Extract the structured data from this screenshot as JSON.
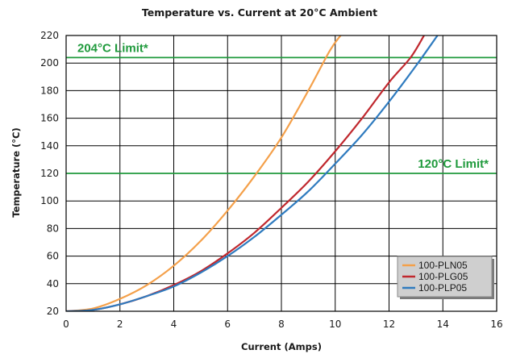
{
  "chart_data": {
    "type": "line",
    "title": "Temperature vs. Current at 20°C Ambient",
    "xlabel": "Current (Amps)",
    "ylabel": "Temperature (°C)",
    "xlim": [
      0,
      16
    ],
    "ylim": [
      20,
      220
    ],
    "xticks": [
      0,
      2,
      4,
      6,
      8,
      10,
      12,
      14,
      16
    ],
    "yticks": [
      20,
      40,
      60,
      80,
      100,
      120,
      140,
      160,
      180,
      200,
      220
    ],
    "grid": true,
    "legend_position": "bottom-right",
    "series": [
      {
        "name": "100-PLN05",
        "color": "#f4a04a",
        "x": [
          0,
          1,
          2,
          3,
          4,
          5,
          6,
          7,
          8,
          9,
          9.8,
          10.2
        ],
        "y": [
          20,
          22,
          29,
          39,
          53,
          71,
          93,
          118,
          146,
          180,
          209,
          220
        ]
      },
      {
        "name": "100-PLG05",
        "color": "#c0282e",
        "x": [
          0,
          1,
          2,
          3,
          4,
          5,
          6,
          7,
          8,
          9,
          10,
          11,
          12,
          12.8,
          13.3
        ],
        "y": [
          20,
          21,
          25,
          31,
          39,
          49,
          62,
          77,
          95,
          114,
          136,
          160,
          186,
          204,
          220
        ]
      },
      {
        "name": "100-PLP05",
        "color": "#2f7bbf",
        "x": [
          0,
          1,
          2,
          3,
          4,
          5,
          6,
          7,
          8,
          9,
          10,
          11,
          12,
          13,
          13.8
        ],
        "y": [
          20,
          21,
          25,
          31,
          38,
          48,
          60,
          74,
          90,
          107,
          127,
          148,
          172,
          198,
          220
        ]
      }
    ],
    "limits": [
      {
        "value": 204,
        "label": "204°C Limit*",
        "color": "#1f9a3c"
      },
      {
        "value": 120,
        "label": "120°C  Limit*",
        "color": "#1f9a3c"
      }
    ]
  }
}
